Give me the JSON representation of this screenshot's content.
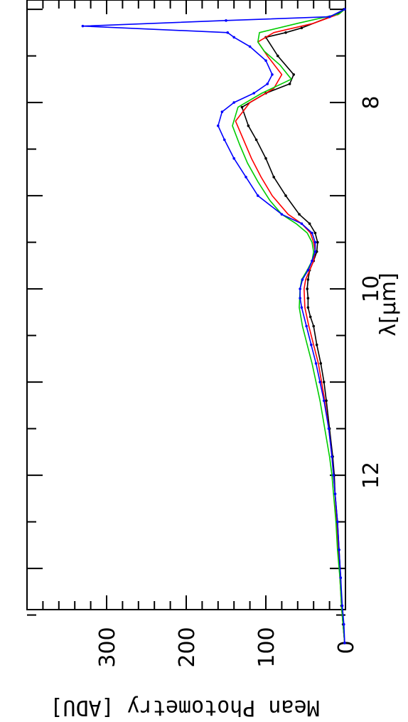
{
  "chart_data": {
    "type": "line",
    "orientation": "rotated-90-clockwise",
    "xlabel": "λ[μm]",
    "ylabel": "Mean Photometry [ADU]",
    "xlim": [
      6.9,
      13.85
    ],
    "ylim": [
      0,
      390
    ],
    "x_ticks": [
      8,
      10,
      12
    ],
    "y_ticks": [
      0,
      100,
      200,
      300
    ],
    "grid": false,
    "series": [
      {
        "color": "#000000",
        "markers": true,
        "x": [
          7.0,
          7.05,
          7.2,
          7.25,
          7.3,
          7.5,
          7.7,
          7.8,
          7.9,
          8.05,
          8.25,
          8.4,
          8.6,
          8.8,
          9.0,
          9.2,
          9.3,
          9.4,
          9.5,
          9.6,
          9.7,
          9.8,
          9.9,
          10.0,
          10.1,
          10.2,
          10.3,
          10.4,
          10.6,
          10.8,
          11.0,
          11.2,
          11.5,
          11.8,
          12.0,
          12.2,
          12.5,
          12.8,
          13.1,
          13.4,
          13.6,
          13.8
        ],
        "y": [
          2,
          10,
          55,
          75,
          100,
          85,
          65,
          70,
          100,
          130,
          122,
          112,
          100,
          90,
          75,
          58,
          45,
          38,
          35,
          36,
          40,
          45,
          47,
          48,
          47,
          47,
          44,
          40,
          36,
          31,
          27,
          24,
          20,
          16,
          14,
          13,
          10,
          8,
          6,
          5,
          3,
          1
        ]
      },
      {
        "color": "#ff0000",
        "markers": false,
        "x": [
          7.0,
          7.05,
          7.15,
          7.25,
          7.35,
          7.5,
          7.7,
          7.85,
          8.0,
          8.2,
          8.4,
          8.6,
          8.8,
          9.0,
          9.2,
          9.3,
          9.4,
          9.5,
          9.6,
          9.7,
          9.8,
          9.9,
          10.0,
          10.2,
          10.4,
          10.6,
          10.8,
          11.0,
          11.2,
          11.5,
          11.8,
          12.0,
          12.2,
          12.5,
          12.8,
          13.1,
          13.4,
          13.6,
          13.8
        ],
        "y": [
          1,
          8,
          40,
          90,
          110,
          98,
          80,
          90,
          120,
          138,
          128,
          118,
          106,
          92,
          72,
          55,
          44,
          40,
          38,
          40,
          45,
          50,
          52,
          51,
          46,
          40,
          34,
          30,
          26,
          21,
          17,
          15,
          13,
          11,
          9,
          7,
          5,
          3,
          1
        ]
      },
      {
        "color": "#00cc00",
        "markers": false,
        "x": [
          7.0,
          7.05,
          7.15,
          7.25,
          7.35,
          7.45,
          7.6,
          7.75,
          7.9,
          8.05,
          8.25,
          8.45,
          8.65,
          8.85,
          9.05,
          9.2,
          9.3,
          9.4,
          9.5,
          9.6,
          9.7,
          9.8,
          9.9,
          10.0,
          10.2,
          10.4,
          10.6,
          10.8,
          11.0,
          11.2,
          11.5,
          11.8,
          12.0,
          12.2,
          12.5,
          12.8,
          13.1,
          13.4,
          13.6,
          13.8
        ],
        "y": [
          1,
          8,
          60,
          108,
          110,
          102,
          82,
          68,
          105,
          135,
          142,
          133,
          123,
          110,
          95,
          80,
          62,
          48,
          42,
          40,
          42,
          48,
          55,
          57,
          58,
          54,
          48,
          42,
          37,
          32,
          26,
          20,
          17,
          15,
          12,
          10,
          7,
          5,
          3,
          1
        ]
      },
      {
        "color": "#0000ff",
        "markers": true,
        "x": [
          7.0,
          7.08,
          7.12,
          7.18,
          7.25,
          7.3,
          7.4,
          7.55,
          7.7,
          7.8,
          7.9,
          8.0,
          8.1,
          8.25,
          8.4,
          8.6,
          8.8,
          9.0,
          9.2,
          9.3,
          9.4,
          9.5,
          9.6,
          9.7,
          9.8,
          9.9,
          10.0,
          10.1,
          10.2,
          10.4,
          10.6,
          10.8,
          11.0,
          11.2,
          11.5,
          11.8,
          12.0,
          12.2,
          12.5,
          12.8,
          13.1,
          13.4,
          13.6,
          13.8
        ],
        "y": [
          1,
          20,
          150,
          330,
          148,
          140,
          120,
          100,
          92,
          98,
          115,
          140,
          155,
          160,
          152,
          140,
          125,
          110,
          80,
          55,
          42,
          38,
          38,
          42,
          47,
          54,
          57,
          57,
          55,
          49,
          43,
          37,
          32,
          27,
          21,
          17,
          15,
          13,
          10,
          8,
          6,
          4,
          2,
          1
        ]
      }
    ]
  }
}
